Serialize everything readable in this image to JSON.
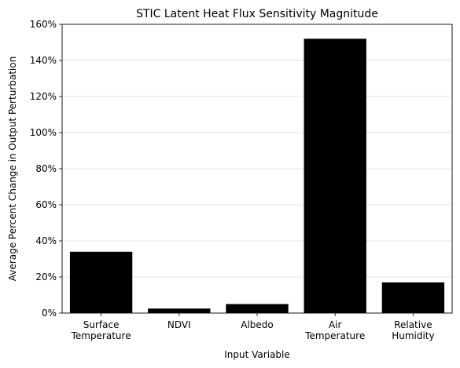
{
  "chart_data": {
    "type": "bar",
    "title": "STIC Latent Heat Flux Sensitivity Magnitude",
    "xlabel": "Input Variable",
    "ylabel": "Average Percent Change in Output Perturbation",
    "categories": [
      [
        "Surface",
        "Temperature"
      ],
      [
        "NDVI"
      ],
      [
        "Albedo"
      ],
      [
        "Air",
        "Temperature"
      ],
      [
        "Relative",
        "Humidity"
      ]
    ],
    "values": [
      34,
      2.5,
      5,
      152,
      17
    ],
    "ylim": [
      0,
      160
    ],
    "yticks": [
      0,
      20,
      40,
      60,
      80,
      100,
      120,
      140,
      160
    ],
    "ytick_labels": [
      "0%",
      "20%",
      "40%",
      "60%",
      "80%",
      "100%",
      "120%",
      "140%",
      "160%"
    ],
    "grid": "horizontal",
    "colors": {
      "bar": "#000000",
      "grid": "#dddddd",
      "axis": "#000000",
      "background": "#ffffff"
    }
  }
}
